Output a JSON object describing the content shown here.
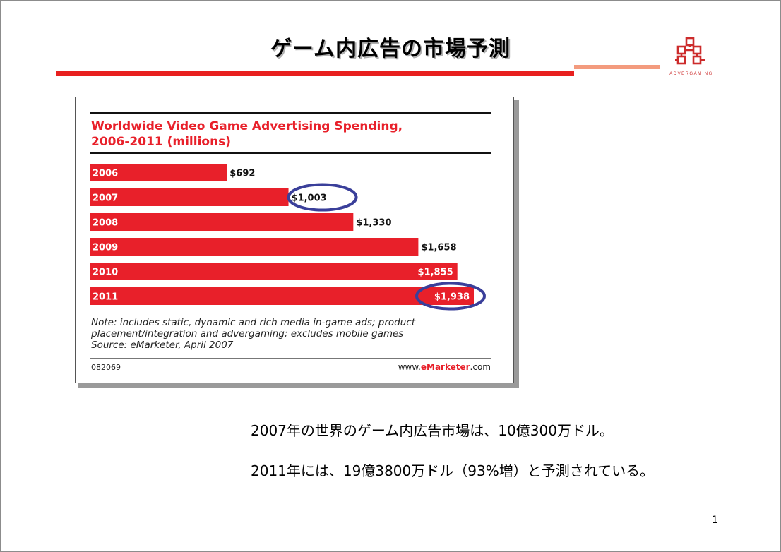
{
  "slide": {
    "title": "ゲーム内広告の市場予測",
    "logo_text": "ADVERGAMING",
    "summary": [
      "2007年の世界のゲーム内広告市場は、10億300万ドル。",
      "2011年には、19億3800万ドル（93%増）と予測されている。"
    ],
    "page_number": "1"
  },
  "colors": {
    "bar": "#e8202a",
    "circle": "#3a3f9a",
    "accent_rule": "#e8201f"
  },
  "chart_data": {
    "type": "bar",
    "orientation": "horizontal",
    "title_lines": [
      "Worldwide Video Game Advertising Spending,",
      "2006-2011 (millions)"
    ],
    "categories": [
      "2006",
      "2007",
      "2008",
      "2009",
      "2010",
      "2011"
    ],
    "values": [
      692,
      1003,
      1330,
      1658,
      1855,
      1938
    ],
    "value_labels": [
      "$692",
      "$1,003",
      "$1,330",
      "$1,658",
      "$1,855",
      "$1,938"
    ],
    "highlighted": [
      "2007",
      "2011"
    ],
    "xlim": [
      0,
      1938
    ],
    "grid": false,
    "legend": "none",
    "note_lines": [
      "Note: includes static, dynamic and rich media in-game ads; product",
      "placement/integration and advergaming; excludes mobile games",
      "Source: eMarketer, April 2007"
    ],
    "chart_id": "082069",
    "source_site": {
      "prefix": "www.",
      "brand": "eMarketer",
      "suffix": ".com"
    }
  }
}
